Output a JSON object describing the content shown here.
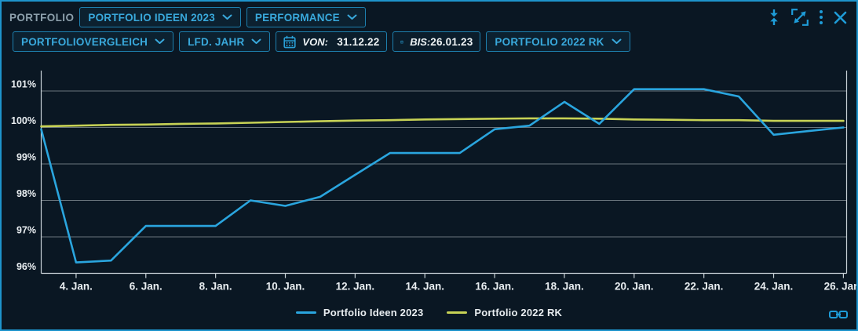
{
  "header": {
    "panel_label": "PORTFOLIO"
  },
  "toolbar_top": {
    "portfolio_dropdown": "PORTFOLIO IDEEN 2023",
    "view_dropdown": "PERFORMANCE"
  },
  "toolbar_filters": {
    "comparison_dropdown": "PORTFOLIOVERGLEICH",
    "period_dropdown": "LFD. JAHR",
    "from_label": "VON:",
    "from_value": "31.12.22",
    "to_label": "BIS:",
    "to_value": "26.01.23",
    "benchmark_dropdown": "PORTFOLIO 2022 RK"
  },
  "icons": {
    "collapse_vertical": "collapse-vertical-icon",
    "expand": "expand-icon",
    "kebab_menu": "kebab-menu-icon",
    "close": "close-icon",
    "calendar": "calendar-icon",
    "chevron_down": "chevron-down-icon",
    "link": "link-icon"
  },
  "colors": {
    "window_border": "#1e94cc",
    "background": "#0a1723",
    "button_border": "#1d7fae",
    "button_text": "#39a9dc",
    "icon_blue": "#1e9cd8",
    "axis": "#c7d0d6",
    "gridline": "#6a757d",
    "tick_text": "#e9eef1",
    "series_blue": "#2aa5de",
    "series_yellow": "#c7d255"
  },
  "chart_data": {
    "type": "line",
    "title": "",
    "xlabel": "",
    "ylabel": "",
    "x_unit": "day of January 2023 (range 31.12.22 - 26.01.23, plotted 3.-26. Jan)",
    "x": [
      3,
      4,
      5,
      6,
      7,
      8,
      9,
      10,
      11,
      12,
      13,
      14,
      15,
      16,
      17,
      18,
      19,
      20,
      21,
      22,
      23,
      24,
      25,
      26
    ],
    "series": [
      {
        "name": "Portfolio Ideen 2023",
        "color": "#2aa5de",
        "values": [
          99.95,
          96.3,
          96.35,
          97.3,
          97.3,
          97.3,
          98.0,
          97.85,
          98.1,
          98.7,
          99.3,
          99.3,
          99.3,
          99.95,
          100.05,
          100.7,
          100.1,
          101.05,
          101.05,
          101.05,
          100.85,
          99.8,
          99.9,
          100.0
        ]
      },
      {
        "name": "Portfolio 2022 RK",
        "color": "#c7d255",
        "values": [
          100.03,
          100.05,
          100.07,
          100.08,
          100.1,
          100.11,
          100.13,
          100.15,
          100.17,
          100.19,
          100.2,
          100.22,
          100.23,
          100.24,
          100.25,
          100.25,
          100.24,
          100.22,
          100.21,
          100.2,
          100.2,
          100.18,
          100.18,
          100.18
        ]
      }
    ],
    "x_ticks": [
      {
        "day": 4,
        "label": "4. Jan."
      },
      {
        "day": 6,
        "label": "6. Jan."
      },
      {
        "day": 8,
        "label": "8. Jan."
      },
      {
        "day": 10,
        "label": "10. Jan."
      },
      {
        "day": 12,
        "label": "12. Jan."
      },
      {
        "day": 14,
        "label": "14. Jan."
      },
      {
        "day": 16,
        "label": "16. Jan."
      },
      {
        "day": 18,
        "label": "18. Jan."
      },
      {
        "day": 20,
        "label": "20. Jan."
      },
      {
        "day": 22,
        "label": "22. Jan."
      },
      {
        "day": 24,
        "label": "24. Jan."
      },
      {
        "day": 26,
        "label": "26. Jan."
      }
    ],
    "y_ticks": [
      {
        "value": 101,
        "label": "101%"
      },
      {
        "value": 100,
        "label": "100%"
      },
      {
        "value": 99,
        "label": "99%"
      },
      {
        "value": 98,
        "label": "98%"
      },
      {
        "value": 97,
        "label": "97%"
      },
      {
        "value": 96,
        "label": "96%"
      }
    ],
    "ylim": [
      96,
      101.55
    ],
    "grid": "horizontal",
    "legend_position": "bottom-center"
  }
}
